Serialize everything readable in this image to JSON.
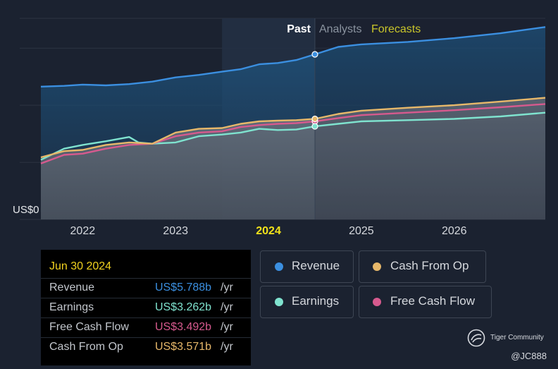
{
  "chart_data": {
    "type": "area",
    "y_axis_label": "US$0",
    "x_ticks": [
      "2022",
      "2023",
      "2024",
      "2025",
      "2026"
    ],
    "highlighted_tick": "2024",
    "xlim": [
      2021.55,
      2026.98
    ],
    "ylim": [
      0,
      8.1
    ],
    "y_gridlines": [
      0,
      2.3,
      4.6,
      6.9
    ],
    "period_labels": {
      "past": "Past",
      "analysts": "Analysts",
      "forecasts": "Forecasts"
    },
    "past_end": 2024.5,
    "highlight_band": [
      2023.5,
      2024.5
    ],
    "series": [
      {
        "key": "revenue",
        "name": "Revenue",
        "color": "#3b8fe0",
        "x": [
          2021.55,
          2021.8,
          2022.0,
          2022.25,
          2022.5,
          2022.75,
          2023.0,
          2023.25,
          2023.5,
          2023.7,
          2023.9,
          2024.1,
          2024.3,
          2024.5,
          2024.75,
          2025.0,
          2025.5,
          2026.0,
          2026.5,
          2026.98
        ],
        "values": [
          5.35,
          5.38,
          5.43,
          5.4,
          5.45,
          5.55,
          5.72,
          5.82,
          5.95,
          6.05,
          6.25,
          6.3,
          6.42,
          6.65,
          6.95,
          7.05,
          7.15,
          7.3,
          7.5,
          7.75
        ]
      },
      {
        "key": "cash_from_op",
        "name": "Cash From Op",
        "color": "#e7b86a",
        "x": [
          2021.55,
          2021.8,
          2022.0,
          2022.25,
          2022.5,
          2022.75,
          2023.0,
          2023.25,
          2023.5,
          2023.7,
          2023.9,
          2024.1,
          2024.3,
          2024.5,
          2024.75,
          2025.0,
          2025.5,
          2026.0,
          2026.5,
          2026.98
        ],
        "values": [
          2.5,
          2.75,
          2.8,
          3.0,
          3.1,
          3.05,
          3.5,
          3.65,
          3.68,
          3.85,
          3.95,
          3.98,
          4.0,
          4.05,
          4.25,
          4.38,
          4.5,
          4.6,
          4.75,
          4.9
        ]
      },
      {
        "key": "free_cash_flow",
        "name": "Free Cash Flow",
        "color": "#d65a8e",
        "x": [
          2021.55,
          2021.8,
          2022.0,
          2022.25,
          2022.5,
          2022.75,
          2023.0,
          2023.25,
          2023.5,
          2023.7,
          2023.9,
          2024.1,
          2024.3,
          2024.5,
          2024.75,
          2025.0,
          2025.5,
          2026.0,
          2026.5,
          2026.98
        ],
        "values": [
          2.25,
          2.6,
          2.65,
          2.85,
          3.0,
          3.05,
          3.35,
          3.5,
          3.55,
          3.72,
          3.8,
          3.85,
          3.88,
          3.95,
          4.08,
          4.2,
          4.3,
          4.4,
          4.52,
          4.65
        ]
      },
      {
        "key": "earnings",
        "name": "Earnings",
        "color": "#7fe3cf",
        "x": [
          2021.55,
          2021.8,
          2022.0,
          2022.25,
          2022.5,
          2022.6,
          2022.75,
          2023.0,
          2023.25,
          2023.5,
          2023.7,
          2023.9,
          2024.1,
          2024.3,
          2024.5,
          2024.75,
          2025.0,
          2025.5,
          2026.0,
          2026.5,
          2026.98
        ],
        "values": [
          2.4,
          2.85,
          3.0,
          3.15,
          3.32,
          3.1,
          3.05,
          3.1,
          3.35,
          3.42,
          3.5,
          3.65,
          3.6,
          3.62,
          3.75,
          3.85,
          3.95,
          4.0,
          4.05,
          4.15,
          4.3
        ]
      }
    ],
    "tooltip": {
      "date": "Jun 30 2024",
      "rows": [
        {
          "label": "Revenue",
          "value": "US$5.788b",
          "unit": "/yr",
          "color": "#3b8fe0"
        },
        {
          "label": "Earnings",
          "value": "US$3.262b",
          "unit": "/yr",
          "color": "#7fe3cf"
        },
        {
          "label": "Free Cash Flow",
          "value": "US$3.492b",
          "unit": "/yr",
          "color": "#d65a8e"
        },
        {
          "label": "Cash From Op",
          "value": "US$3.571b",
          "unit": "/yr",
          "color": "#e7b86a"
        }
      ]
    }
  },
  "legend": {
    "revenue": "Revenue",
    "cash_from_op": "Cash From Op",
    "earnings": "Earnings",
    "free_cash_flow": "Free Cash Flow"
  },
  "colors": {
    "revenue": "#3b8fe0",
    "cash_from_op": "#e7b86a",
    "earnings": "#7fe3cf",
    "free_cash_flow": "#d65a8e",
    "tooltip_date": "#f2d21f",
    "forecasts": "#c9c52a"
  },
  "watermark": {
    "brand": "Tiger Community",
    "handle": "@JC888",
    "icon": "tiger-community-logo-icon"
  }
}
